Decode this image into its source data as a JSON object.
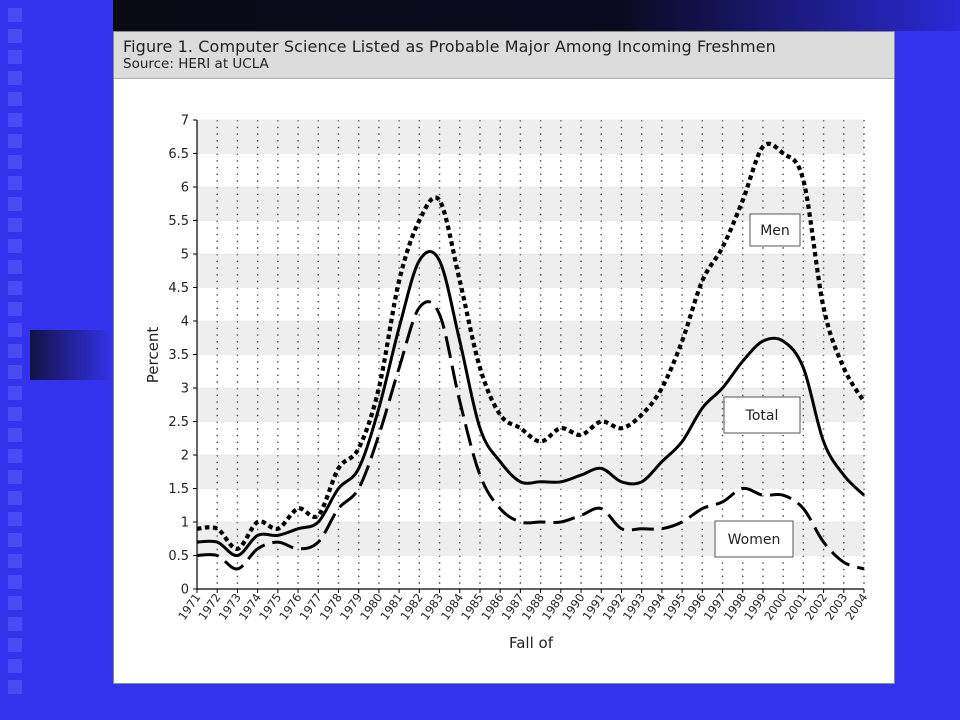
{
  "figure": {
    "title": "Figure 1. Computer Science Listed as Probable Major Among Incoming Freshmen",
    "source": "Source: HERI at UCLA"
  },
  "colors": {
    "slide_background": "#3333ee",
    "slide_dark": "#0a0a14",
    "line": "#000000",
    "band": "#eeeeee"
  },
  "chart_data": {
    "type": "line",
    "xlabel": "Fall of",
    "ylabel": "Percent",
    "ylim": [
      0,
      7
    ],
    "yticks": [
      "0",
      "0.5",
      "1",
      "1.5",
      "2",
      "2.5",
      "3",
      "3.5",
      "4",
      "4.5",
      "5",
      "5.5",
      "6",
      "6.5",
      "7"
    ],
    "categories": [
      "1971",
      "1972",
      "1973",
      "1974",
      "1975",
      "1976",
      "1977",
      "1978",
      "1979",
      "1980",
      "1981",
      "1982",
      "1983",
      "1984",
      "1985",
      "1986",
      "1987",
      "1988",
      "1989",
      "1990",
      "1991",
      "1992",
      "1993",
      "1994",
      "1995",
      "1996",
      "1997",
      "1998",
      "1999",
      "2000",
      "2001",
      "2002",
      "2003",
      "2004"
    ],
    "grid": true,
    "series": [
      {
        "name": "Men",
        "style": "dotted",
        "values": [
          0.9,
          0.9,
          0.6,
          1.0,
          0.9,
          1.2,
          1.1,
          1.8,
          2.1,
          3.0,
          4.6,
          5.5,
          5.8,
          4.6,
          3.3,
          2.6,
          2.4,
          2.2,
          2.4,
          2.3,
          2.5,
          2.4,
          2.6,
          3.0,
          3.7,
          4.6,
          5.1,
          5.8,
          6.6,
          6.5,
          6.1,
          4.2,
          3.3,
          2.8
        ]
      },
      {
        "name": "Total",
        "style": "solid",
        "values": [
          0.7,
          0.7,
          0.5,
          0.8,
          0.8,
          0.9,
          1.0,
          1.5,
          1.8,
          2.7,
          3.9,
          4.9,
          4.9,
          3.7,
          2.4,
          1.9,
          1.6,
          1.6,
          1.6,
          1.7,
          1.8,
          1.6,
          1.6,
          1.9,
          2.2,
          2.7,
          3.0,
          3.4,
          3.7,
          3.7,
          3.3,
          2.2,
          1.7,
          1.4
        ]
      },
      {
        "name": "Women",
        "style": "dashed",
        "values": [
          0.5,
          0.5,
          0.3,
          0.6,
          0.7,
          0.6,
          0.7,
          1.2,
          1.5,
          2.3,
          3.3,
          4.2,
          4.1,
          2.8,
          1.7,
          1.2,
          1.0,
          1.0,
          1.0,
          1.1,
          1.2,
          0.9,
          0.9,
          0.9,
          1.0,
          1.2,
          1.3,
          1.5,
          1.4,
          1.4,
          1.2,
          0.7,
          0.4,
          0.3
        ]
      }
    ],
    "annotations": [
      {
        "text": "Men",
        "series": "Men"
      },
      {
        "text": "Total",
        "series": "Total"
      },
      {
        "text": "Women",
        "series": "Women"
      }
    ]
  }
}
